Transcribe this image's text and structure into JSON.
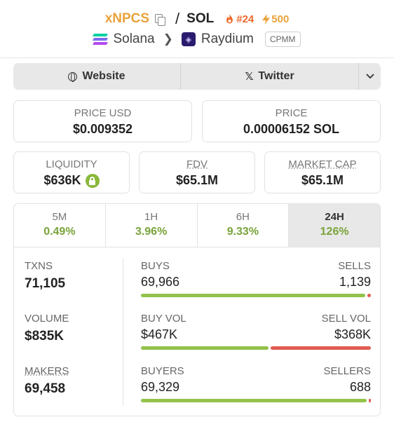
{
  "header": {
    "token_name": "xNPCS",
    "separator": "/",
    "quote_symbol": "SOL",
    "rank": "#24",
    "boost": "500"
  },
  "chain": {
    "chain_name": "Solana",
    "dex_name": "Raydium",
    "pool_type": "CPMM"
  },
  "links": {
    "website_label": "Website",
    "twitter_label": "Twitter"
  },
  "price": {
    "usd_label": "PRICE USD",
    "usd_value": "$0.009352",
    "native_label": "PRICE",
    "native_value": "0.00006152 SOL"
  },
  "metrics": {
    "liquidity_label": "LIQUIDITY",
    "liquidity_value": "$636K",
    "fdv_label": "FDV",
    "fdv_value": "$65.1M",
    "mcap_label": "MARKET CAP",
    "mcap_value": "$65.1M"
  },
  "timeframes": [
    {
      "label": "5M",
      "change": "0.49%"
    },
    {
      "label": "1H",
      "change": "3.96%"
    },
    {
      "label": "6H",
      "change": "9.33%"
    },
    {
      "label": "24H",
      "change": "126%",
      "active": true
    }
  ],
  "stats": {
    "txns_label": "TXNS",
    "txns_value": "71,105",
    "volume_label": "VOLUME",
    "volume_value": "$835K",
    "makers_label": "MAKERS",
    "makers_value": "69,458",
    "buys_label": "BUYS",
    "buys_value": "69,966",
    "sells_label": "SELLS",
    "sells_value": "1,139",
    "buy_vol_label": "BUY VOL",
    "buy_vol_value": "$467K",
    "sell_vol_label": "SELL VOL",
    "sell_vol_value": "$368K",
    "buyers_label": "BUYERS",
    "buyers_value": "69,329",
    "sellers_label": "SELLERS",
    "sellers_value": "688",
    "buys_ratio": 0.984,
    "buy_vol_ratio": 0.559,
    "buyers_ratio": 0.99
  },
  "colors": {
    "accent_gold": "#e9a23b",
    "positive_green": "#7aa33a",
    "bar_green": "#93c24a",
    "bar_red": "#e05c52"
  }
}
